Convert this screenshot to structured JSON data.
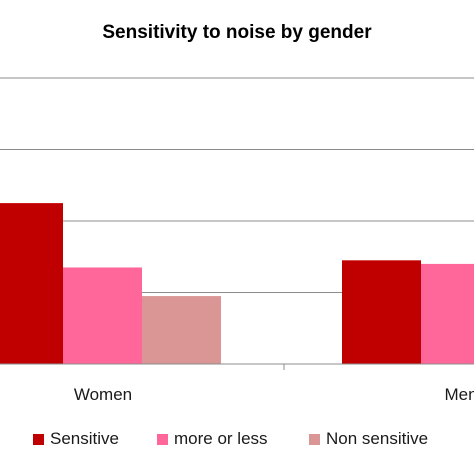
{
  "chart_data": {
    "type": "bar",
    "title": "Sensitivity to noise by gender",
    "xlabel": "",
    "ylabel": "",
    "categories": [
      "Women",
      "Men"
    ],
    "series": [
      {
        "name": "Sensitive",
        "color": "#c00000",
        "values": [
          45,
          29
        ]
      },
      {
        "name": "more or less",
        "color": "#ff6699",
        "values": [
          27,
          28
        ]
      },
      {
        "name": "Non sensitive",
        "color": "#d99694",
        "values": [
          19,
          0
        ]
      }
    ],
    "ylim": [
      0,
      80
    ],
    "y_gridlines": [
      20,
      40,
      60,
      80
    ],
    "grid": true,
    "legend_position": "bottom"
  }
}
